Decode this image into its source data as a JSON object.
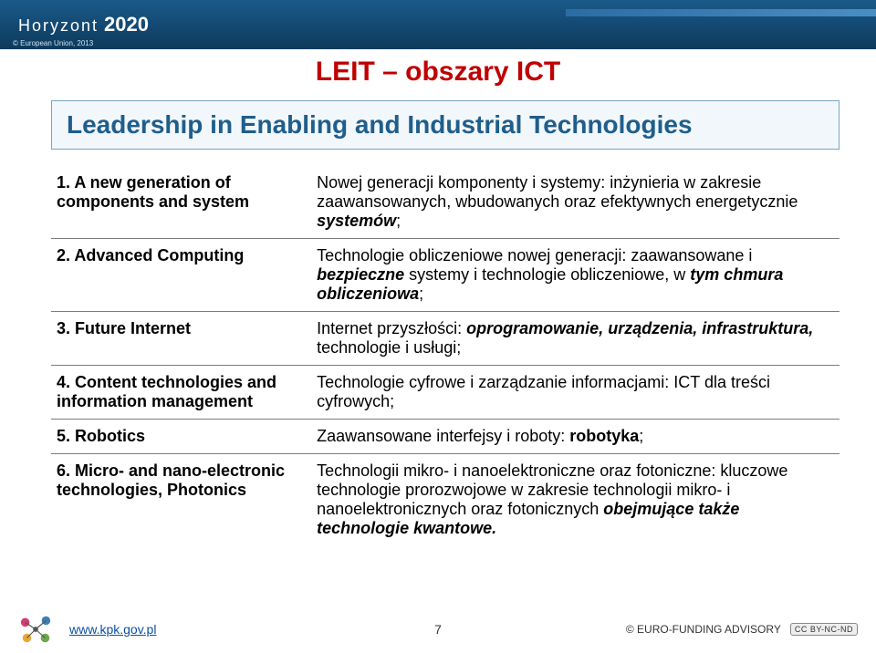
{
  "header": {
    "logo_part1": "Horyzont",
    "logo_part2": "2020",
    "eu_credit": "© European Union, 2013"
  },
  "title": {
    "text": "LEIT – obszary ICT",
    "color": "#c00000"
  },
  "subtitle": {
    "text": "Leadership in Enabling and Industrial Technologies",
    "color": "#1f5e8b",
    "box_border": "#7aa6c2",
    "box_bg": "#f1f7fb"
  },
  "rows": [
    {
      "left": "1. A new generation of components and system",
      "right_html": "Nowej generacji komponenty i systemy: inżynieria w zakresie zaawansowanych, wbudowanych oraz efektywnych energetycznie <b><i>systemów</i></b>;"
    },
    {
      "left": "2. Advanced Computing",
      "right_html": "Technologie obliczeniowe nowej generacji: zaawansowane i <b><i>bezpieczne</i></b> systemy i technologie obliczeniowe, w <b><i>tym chmura obliczeniowa</i></b>;"
    },
    {
      "left": "3. Future Internet",
      "right_html": "Internet przyszłości: <b><i>oprogramowanie, urządzenia, infrastruktura,</i></b> technologie i usługi;"
    },
    {
      "left": "4. Content technologies and information management",
      "right_html": "Technologie cyfrowe i zarządzanie informacjami: ICT dla treści cyfrowych;"
    },
    {
      "left": "5. Robotics",
      "right_html": "Zaawansowane interfejsy i roboty: <b>robotyka</b>;"
    },
    {
      "left": "6. Micro- and nano-electronic technologies, Photonics",
      "right_html": "Technologii mikro- i nanoelektroniczne oraz fotoniczne: kluczowe technologie prorozwojowe w zakresie technologii mikro- i nanoelektronicznych oraz fotonicznych <b><i>obejmujące także technologie kwantowe.</i></b>"
    }
  ],
  "footer": {
    "link": "www.kpk.gov.pl",
    "page_num": "7",
    "advisory": "© EURO-FUNDING ADVISORY",
    "cc": "CC BY-NC-ND"
  },
  "colors": {
    "header_grad_top": "#1a5a8a",
    "header_grad_bottom": "#0d3a5c",
    "row_sep": "#7c7c7c",
    "brand_atom": "#d43b74",
    "brand_atom2": "#3f7fb3",
    "brand_atom3": "#e8a935",
    "brand_atom4": "#6aa84f"
  }
}
